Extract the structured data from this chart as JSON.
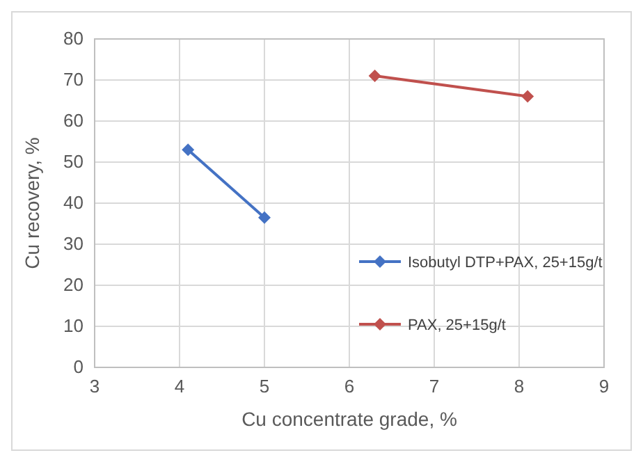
{
  "chart_data": {
    "type": "line",
    "xlabel": "Cu concentrate grade, %",
    "ylabel": "Cu recovery, %",
    "series": [
      {
        "name": "Isobutyl DTP+PAX, 25+15g/t",
        "color": "#4472c4",
        "x": [
          4.1,
          5.0
        ],
        "values": [
          53,
          36.5
        ]
      },
      {
        "name": "PAX, 25+15g/t",
        "color": "#c0504d",
        "x": [
          6.3,
          8.1
        ],
        "values": [
          71,
          66
        ]
      }
    ],
    "xlim": [
      3,
      9
    ],
    "xticks": [
      3,
      4,
      5,
      6,
      7,
      8,
      9
    ],
    "ylim": [
      0,
      80
    ],
    "yticks": [
      0,
      10,
      20,
      30,
      40,
      50,
      60,
      70,
      80
    ],
    "grid": true,
    "legend": "right",
    "marker": "diamond",
    "line_style": "solid"
  }
}
